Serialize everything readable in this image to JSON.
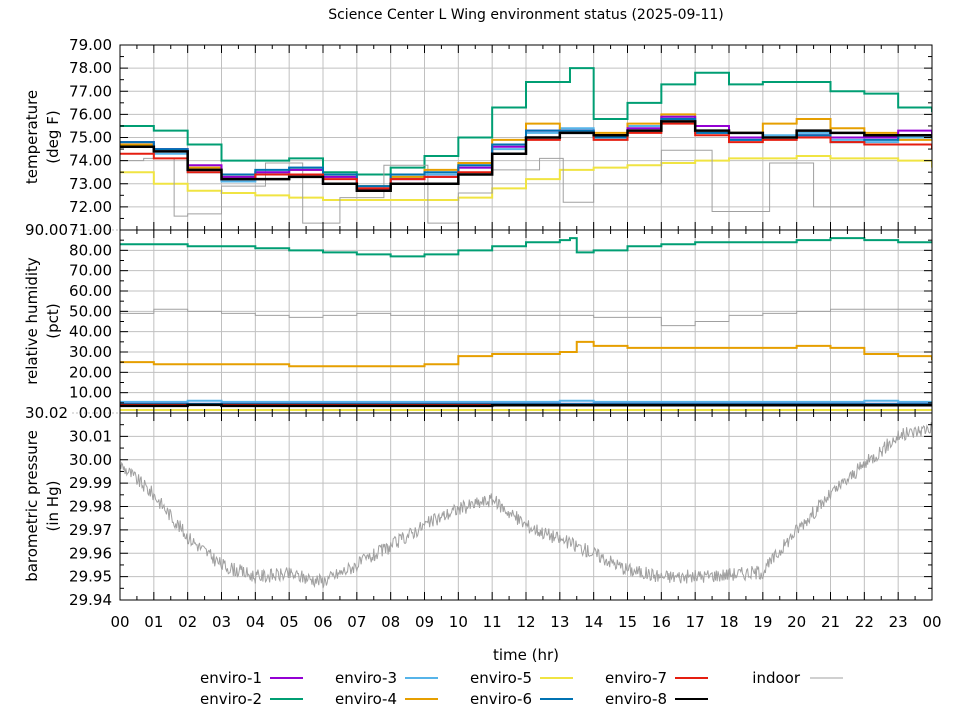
{
  "chart_data": {
    "type": "line",
    "title": "Science Center L Wing environment status (2025-09-11)",
    "xlabel": "time (hr)",
    "xlim": [
      0,
      24
    ],
    "xtick_labels": [
      "00",
      "01",
      "02",
      "03",
      "04",
      "05",
      "06",
      "07",
      "08",
      "09",
      "10",
      "11",
      "12",
      "13",
      "14",
      "15",
      "16",
      "17",
      "18",
      "19",
      "20",
      "21",
      "22",
      "23",
      "00"
    ],
    "grid": true,
    "legend_placement": "bottom",
    "colors": {
      "enviro-1": "#9400d3",
      "enviro-2": "#009e73",
      "enviro-3": "#56b4e9",
      "enviro-4": "#e69f00",
      "enviro-5": "#f0e442",
      "enviro-6": "#0072b2",
      "enviro-7": "#e51e10",
      "enviro-8": "#000000",
      "indoor": "#a0a0a0"
    },
    "legend": [
      {
        "name": "enviro-1"
      },
      {
        "name": "enviro-2"
      },
      {
        "name": "enviro-3"
      },
      {
        "name": "enviro-4"
      },
      {
        "name": "enviro-5"
      },
      {
        "name": "enviro-6"
      },
      {
        "name": "enviro-7"
      },
      {
        "name": "enviro-8"
      },
      {
        "name": "indoor"
      }
    ],
    "panels": [
      {
        "id": "temperature",
        "ylabel": [
          "temperature",
          "(deg F)"
        ],
        "ylim": [
          71,
          79
        ],
        "ytick_values": [
          71,
          72,
          73,
          74,
          75,
          76,
          77,
          78,
          79
        ],
        "ytick_labels": [
          "71.00",
          "72.00",
          "73.00",
          "74.00",
          "75.00",
          "76.00",
          "77.00",
          "78.00",
          "79.00"
        ],
        "series": [
          {
            "name": "enviro-2",
            "values": [
              75.5,
              75.3,
              74.7,
              74.0,
              74.0,
              74.1,
              73.5,
              73.4,
              73.7,
              74.2,
              75.0,
              76.3,
              77.4,
              78.0,
              75.8,
              76.5,
              77.3,
              77.8,
              77.3,
              77.4,
              77.4,
              77.0,
              76.9,
              76.3,
              76.1
            ],
            "x": [
              0,
              1,
              2,
              3,
              4,
              5,
              6,
              7,
              8,
              9,
              10,
              11,
              12,
              13.3,
              14,
              15,
              16,
              17,
              18,
              19,
              20,
              21,
              22,
              23,
              24
            ]
          },
          {
            "name": "enviro-5",
            "values": [
              73.5,
              73.0,
              72.7,
              72.6,
              72.5,
              72.4,
              72.3,
              72.3,
              72.3,
              72.3,
              72.4,
              72.8,
              73.2,
              73.6,
              73.7,
              73.8,
              73.9,
              74.0,
              74.1,
              74.1,
              74.2,
              74.1,
              74.1,
              74.0,
              73.7
            ]
          },
          {
            "name": "indoor",
            "x": [
              0,
              0.7,
              1.6,
              2,
              3,
              4.3,
              5.4,
              6.5,
              7.8,
              9.1,
              10,
              11,
              12.4,
              13.1,
              14,
              16,
              17.5,
              19.2,
              20.5,
              22,
              24
            ],
            "values": [
              74.0,
              74.1,
              71.6,
              71.7,
              72.9,
              73.9,
              71.3,
              72.4,
              73.8,
              71.3,
              72.6,
              73.6,
              74.1,
              72.2,
              73.0,
              74.45,
              71.8,
              73.9,
              72.0,
              73.0,
              74.1
            ]
          },
          {
            "name": "enviro-3",
            "values": [
              74.6,
              74.3,
              73.5,
              73.1,
              73.5,
              73.7,
              73.3,
              72.8,
              73.3,
              73.4,
              73.7,
              74.5,
              75.2,
              75.4,
              75.1,
              75.5,
              75.9,
              75.2,
              74.9,
              75.1,
              75.2,
              74.9,
              74.8,
              75.0,
              74.9
            ]
          },
          {
            "name": "enviro-4",
            "values": [
              74.7,
              74.4,
              73.7,
              73.3,
              73.4,
              73.6,
              73.3,
              72.9,
              73.3,
              73.6,
              73.9,
              74.9,
              75.6,
              75.3,
              75.2,
              75.6,
              76.0,
              75.5,
              75.2,
              75.6,
              75.8,
              75.4,
              75.2,
              74.9,
              74.9
            ]
          },
          {
            "name": "enviro-1",
            "values": [
              74.8,
              74.5,
              73.8,
              73.3,
              73.5,
              73.6,
              73.3,
              72.8,
              73.2,
              73.3,
              73.7,
              74.6,
              75.3,
              75.3,
              75.1,
              75.4,
              75.9,
              75.5,
              75.0,
              75.0,
              75.1,
              75.0,
              75.0,
              75.3,
              75.1
            ]
          },
          {
            "name": "enviro-6",
            "values": [
              74.8,
              74.5,
              73.6,
              73.4,
              73.6,
              73.7,
              73.4,
              72.9,
              73.4,
              73.5,
              73.8,
              74.7,
              75.3,
              75.3,
              75.0,
              75.3,
              75.8,
              75.2,
              74.9,
              75.0,
              75.1,
              74.8,
              74.9,
              75.1,
              75.0
            ]
          },
          {
            "name": "enviro-7",
            "values": [
              74.3,
              74.1,
              73.5,
              73.2,
              73.4,
              73.4,
              73.2,
              72.8,
              73.2,
              73.3,
              73.5,
              74.3,
              74.9,
              75.2,
              74.9,
              75.2,
              75.6,
              75.1,
              74.8,
              74.9,
              75.0,
              74.8,
              74.7,
              74.7,
              74.5
            ]
          },
          {
            "name": "enviro-8",
            "values": [
              74.6,
              74.4,
              73.6,
              73.2,
              73.2,
              73.3,
              73.0,
              72.7,
              73.0,
              73.0,
              73.4,
              74.3,
              75.0,
              75.2,
              75.1,
              75.3,
              75.7,
              75.3,
              75.2,
              75.0,
              75.3,
              75.2,
              75.1,
              75.1,
              75.0
            ]
          }
        ]
      },
      {
        "id": "humidity",
        "ylabel": [
          "relative humidity",
          "(pct)"
        ],
        "ylim": [
          0,
          90
        ],
        "ytick_values": [
          0,
          10,
          20,
          30,
          40,
          50,
          60,
          70,
          80,
          90
        ],
        "ytick_labels": [
          "0.00",
          "10.00",
          "20.00",
          "30.00",
          "40.00",
          "50.00",
          "60.00",
          "70.00",
          "80.00",
          "90.00"
        ],
        "series": [
          {
            "name": "enviro-2",
            "x": [
              0,
              1,
              2,
              3,
              4,
              5,
              6,
              7,
              8,
              9,
              10,
              11,
              12,
              13,
              13.3,
              13.5,
              14,
              15,
              16,
              17,
              18,
              19,
              20,
              21,
              22,
              23,
              24
            ],
            "values": [
              83,
              83,
              82,
              82,
              81,
              80,
              79,
              78,
              77,
              78,
              80,
              82,
              84,
              85,
              86,
              79,
              80,
              82,
              83,
              84,
              84,
              84,
              85,
              86,
              85,
              84,
              84
            ]
          },
          {
            "name": "indoor",
            "values": [
              49,
              51,
              50,
              49,
              48,
              47,
              48,
              49,
              48,
              48,
              48,
              48,
              48,
              48,
              47,
              47,
              43,
              45,
              48,
              49,
              50,
              51,
              51,
              51,
              51
            ]
          },
          {
            "name": "enviro-4",
            "x": [
              0,
              1,
              2,
              3,
              4,
              5,
              6,
              7,
              8,
              9,
              10,
              11,
              12,
              13,
              13.5,
              14,
              15,
              16,
              17,
              18,
              19,
              20,
              21,
              22,
              23,
              24
            ],
            "values": [
              25,
              24,
              24,
              24,
              24,
              23,
              23,
              23,
              23,
              24,
              28,
              29,
              29,
              30,
              35,
              33,
              32,
              32,
              32,
              32,
              32,
              33,
              32,
              29,
              28,
              26
            ]
          },
          {
            "name": "enviro-3",
            "values": [
              5.5,
              5.5,
              6,
              5.5,
              5.5,
              5.5,
              5.5,
              5.5,
              5.5,
              5.5,
              5.5,
              5.5,
              5.5,
              6,
              5.5,
              5.5,
              5.5,
              5.5,
              5.5,
              5.5,
              5.5,
              5.5,
              6,
              5.5,
              5.5
            ]
          },
          {
            "name": "enviro-1",
            "values": [
              4.5,
              4.5,
              4.5,
              4.5,
              4.5,
              4.5,
              4.5,
              4.5,
              4.5,
              4.5,
              4.5,
              4.5,
              4.5,
              4.5,
              4.5,
              4.5,
              4.5,
              4.5,
              4.5,
              4.5,
              4.5,
              4.5,
              4.5,
              4.5,
              4.5
            ]
          },
          {
            "name": "enviro-4-low",
            "hidden": true,
            "values": []
          },
          {
            "name": "enviro-6",
            "values": [
              4.5,
              4.5,
              4.5,
              4.5,
              4.5,
              4.5,
              4.5,
              4.5,
              4.5,
              4.5,
              4.5,
              4.5,
              4.5,
              4.5,
              4.5,
              4.5,
              4.5,
              4.5,
              4.5,
              4.5,
              4.5,
              4.5,
              4.5,
              4.5,
              4.5
            ]
          },
          {
            "name": "enviro-7",
            "values": [
              4,
              4,
              4,
              4,
              4,
              4,
              4,
              4,
              4,
              4,
              4,
              4,
              4,
              4,
              4,
              4,
              4,
              4,
              4,
              4,
              4,
              4,
              4,
              4,
              4
            ]
          },
          {
            "name": "enviro-8",
            "values": [
              3.5,
              3.5,
              4,
              3.5,
              3.5,
              3.5,
              3.5,
              3.5,
              3.5,
              3.5,
              3.5,
              3.8,
              3.8,
              3.8,
              3.8,
              3.8,
              3.8,
              3.8,
              3.8,
              3.8,
              3.8,
              3.8,
              3.8,
              3.8,
              3.8
            ]
          },
          {
            "name": "enviro-5",
            "values": [
              1.5,
              1.5,
              1.5,
              1.5,
              1.5,
              1.5,
              1.5,
              1.5,
              1.5,
              1.5,
              1.5,
              1.5,
              1.5,
              1.5,
              1.5,
              1.5,
              1.5,
              1.5,
              1.5,
              1.5,
              1.5,
              1.5,
              1.5,
              1.5,
              1.5
            ]
          }
        ]
      },
      {
        "id": "pressure",
        "ylabel": [
          "barometric pressure",
          "(in Hg)"
        ],
        "ylim": [
          29.94,
          30.02
        ],
        "ytick_values": [
          29.94,
          29.95,
          29.96,
          29.97,
          29.98,
          29.99,
          30.0,
          30.01,
          30.02
        ],
        "ytick_labels": [
          "29.94",
          "29.95",
          "29.96",
          "29.97",
          "29.98",
          "29.99",
          "30.00",
          "30.01",
          "30.02"
        ],
        "series": [
          {
            "name": "indoor",
            "values": [
              29.998,
              29.985,
              29.967,
              29.955,
              29.95,
              29.951,
              29.948,
              29.955,
              29.963,
              29.972,
              29.979,
              29.983,
              29.972,
              29.966,
              29.96,
              29.953,
              29.95,
              29.95,
              29.951,
              29.952,
              29.97,
              29.985,
              29.998,
              30.01,
              30.014
            ]
          }
        ]
      }
    ]
  }
}
